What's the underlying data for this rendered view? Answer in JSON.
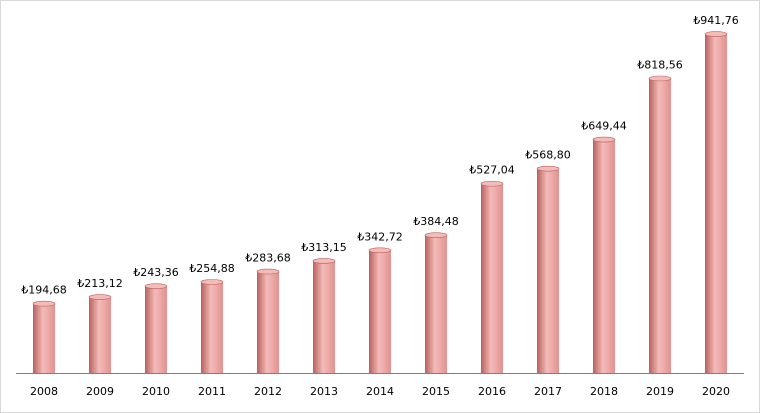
{
  "chart_data": {
    "type": "bar",
    "title": "",
    "xlabel": "",
    "ylabel": "",
    "categories": [
      "2008",
      "2009",
      "2010",
      "2011",
      "2012",
      "2013",
      "2014",
      "2015",
      "2016",
      "2017",
      "2018",
      "2019",
      "2020"
    ],
    "values": [
      194.68,
      213.12,
      243.36,
      254.88,
      283.68,
      313.15,
      342.72,
      384.48,
      527.04,
      568.8,
      649.44,
      818.56,
      941.76
    ],
    "data_labels": [
      "₺194,68",
      "₺213,12",
      "₺243,36",
      "₺254,88",
      "₺283,68",
      "₺313,15",
      "₺342,72",
      "₺384,48",
      "₺527,04",
      "₺568,80",
      "₺649,44",
      "₺818,56",
      "₺941,76"
    ],
    "ylim": [
      0,
      1000
    ],
    "grid": false,
    "legend": "none",
    "colors": {
      "bar": "#e3918f",
      "bar_dark": "#b8605e",
      "bar_light": "#f3bcb9",
      "axis": "#7f7f7f"
    }
  }
}
